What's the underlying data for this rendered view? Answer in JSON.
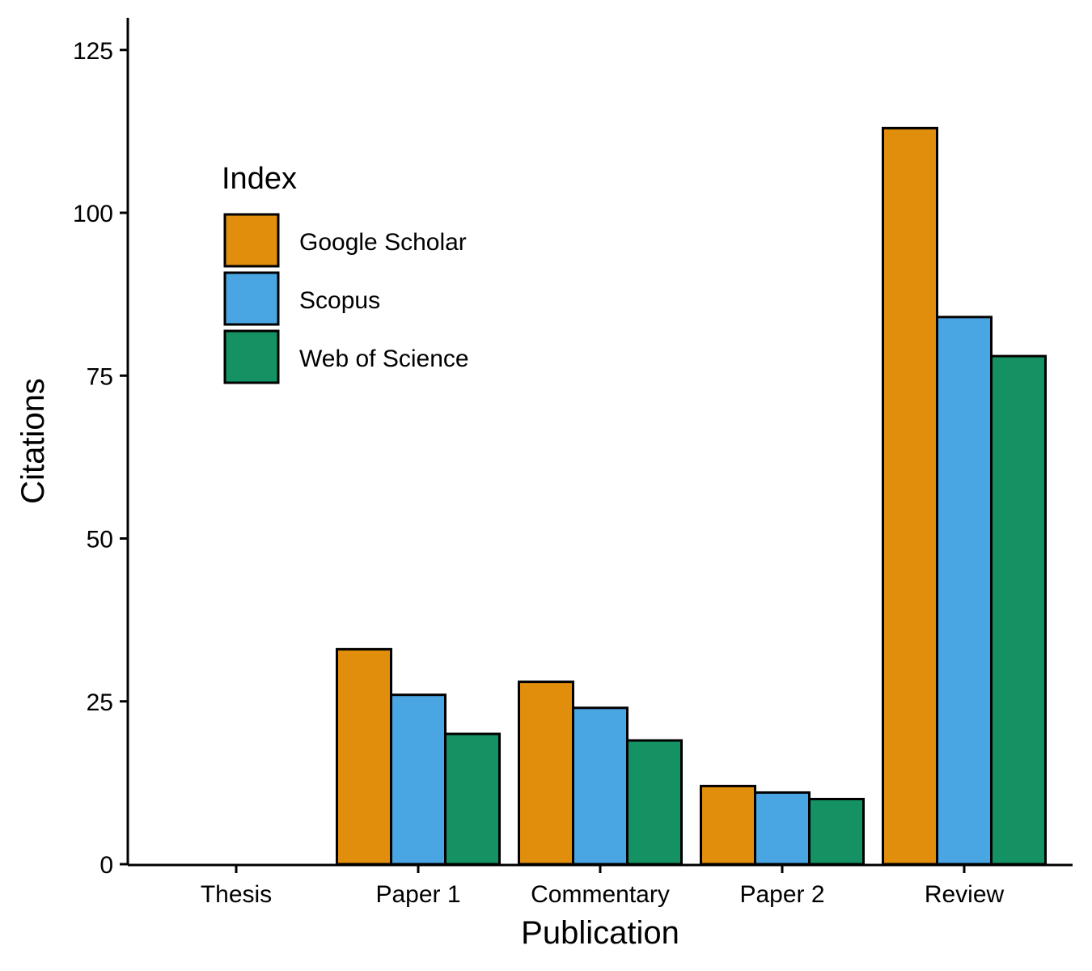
{
  "chart_data": {
    "type": "bar",
    "title": "",
    "xlabel": "Publication",
    "ylabel": "Citations",
    "categories": [
      "Thesis",
      "Paper 1",
      "Commentary",
      "Paper 2",
      "Review"
    ],
    "series": [
      {
        "name": "Google Scholar",
        "color": "#E08E0B",
        "values": [
          0,
          33,
          28,
          12,
          113
        ]
      },
      {
        "name": "Scopus",
        "color": "#4AA6E3",
        "values": [
          0,
          26,
          24,
          11,
          84
        ]
      },
      {
        "name": "Web of Science",
        "color": "#159263",
        "values": [
          0,
          20,
          19,
          10,
          78
        ]
      }
    ],
    "ylim": [
      0,
      130
    ],
    "yticks": [
      0,
      25,
      50,
      75,
      100,
      125
    ],
    "ytick_labels": [
      "0",
      "25",
      "50",
      "75",
      "100",
      "125"
    ],
    "legend": {
      "title": "Index",
      "position": "top-left (inside plot)"
    },
    "grid": false
  }
}
